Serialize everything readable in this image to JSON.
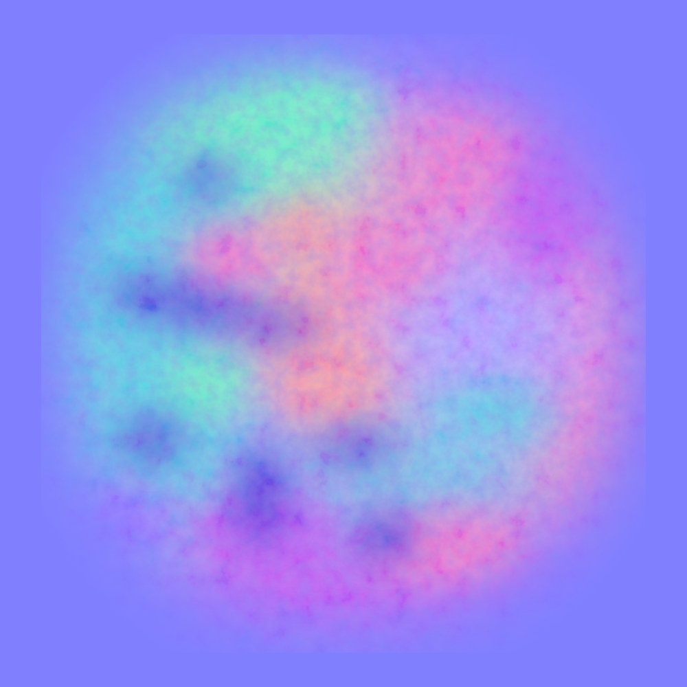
{
  "image": {
    "kind": "tangent-space normal map texture",
    "base_color": "#8080ff",
    "palette": {
      "flat": "#8080ff",
      "cyan_green": "#6ef0c0",
      "teal": "#5fd0e0",
      "pink": "#f07ac8",
      "salmon": "#f59aa0",
      "magenta": "#c060f0",
      "deep_blue": "#5a46d8",
      "violet": "#9a70ff",
      "lavender": "#b0a0ff"
    },
    "regions": [
      {
        "name": "top-left-green",
        "color_key": "cyan_green"
      },
      {
        "name": "left-teal",
        "color_key": "teal"
      },
      {
        "name": "center-salmon",
        "color_key": "salmon"
      },
      {
        "name": "right-pink",
        "color_key": "pink"
      },
      {
        "name": "bottom-magenta",
        "color_key": "magenta"
      },
      {
        "name": "center-right-lavender",
        "color_key": "lavender"
      },
      {
        "name": "dark-crevices",
        "color_key": "deep_blue"
      }
    ]
  }
}
